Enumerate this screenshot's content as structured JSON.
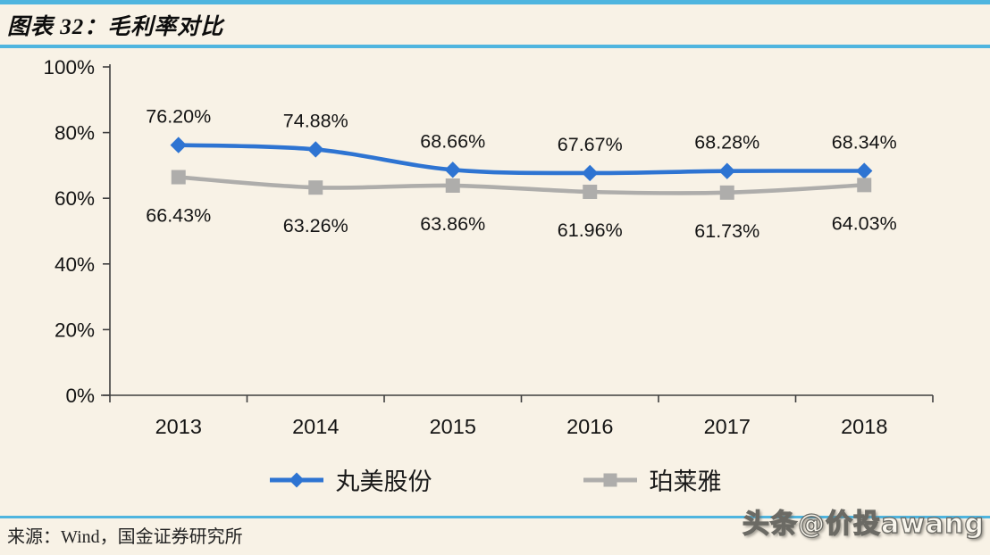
{
  "header": {
    "title": "图表 32：毛利率对比"
  },
  "chart_data": {
    "type": "line",
    "title": "毛利率对比",
    "categories": [
      "2013",
      "2014",
      "2015",
      "2016",
      "2017",
      "2018"
    ],
    "series": [
      {
        "name": "丸美股份",
        "color": "#2E74D2",
        "marker": "diamond",
        "values": [
          76.2,
          74.88,
          68.66,
          67.67,
          68.28,
          68.34
        ],
        "point_labels": [
          "76.20%",
          "74.88%",
          "68.66%",
          "67.67%",
          "68.28%",
          "68.34%"
        ],
        "label_position": "above"
      },
      {
        "name": "珀莱雅",
        "color": "#AEADAB",
        "marker": "square",
        "values": [
          66.43,
          63.26,
          63.86,
          61.96,
          61.73,
          64.03
        ],
        "point_labels": [
          "66.43%",
          "63.26%",
          "63.86%",
          "61.96%",
          "61.73%",
          "64.03%"
        ],
        "label_position": "below"
      }
    ],
    "y_axis": {
      "min": 0,
      "max": 100,
      "step": 20,
      "tick_labels": [
        "0%",
        "20%",
        "40%",
        "60%",
        "80%",
        "100%"
      ]
    },
    "grid": false,
    "data_labels": true,
    "legend_position": "bottom",
    "line_style": "smooth"
  },
  "legend": {
    "items": [
      {
        "label": "丸美股份",
        "color": "#2E74D2",
        "marker": "diamond"
      },
      {
        "label": "珀莱雅",
        "color": "#AEADAB",
        "marker": "square"
      }
    ]
  },
  "footer": {
    "source": "来源：Wind，国金证券研究所"
  },
  "watermark": {
    "text": "头条@价投awang"
  },
  "colors": {
    "background": "#F8F2E6",
    "accent_line": "#4FB5DF",
    "axis": "#3f3f3f",
    "label_text": "#141414"
  }
}
